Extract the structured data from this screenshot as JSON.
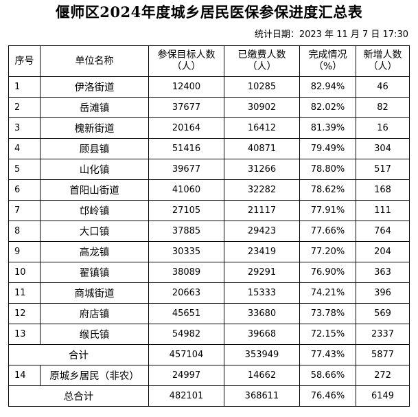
{
  "title": "偃师区2024年度城乡居民医保参保进度汇总表",
  "stat_time": "统计日期：2023 年 11 月 7 日 17:30",
  "headers": {
    "index": "序号",
    "unit_name": "单位名称",
    "target_main": "参保目标人数",
    "target_unit": "（人）",
    "paid_main": "已缴费人数",
    "paid_unit": "（人）",
    "rate_main": "完成情况",
    "rate_unit": "（%）",
    "new_main": "新增人数",
    "new_unit": "（人）"
  },
  "rows": [
    {
      "idx": "1",
      "name": "伊洛街道",
      "target": "12400",
      "paid": "10285",
      "rate": "82.94%",
      "new": "46"
    },
    {
      "idx": "2",
      "name": "岳滩镇",
      "target": "37677",
      "paid": "30902",
      "rate": "82.02%",
      "new": "82"
    },
    {
      "idx": "3",
      "name": "槐新街道",
      "target": "20164",
      "paid": "16412",
      "rate": "81.39%",
      "new": "16"
    },
    {
      "idx": "4",
      "name": "顾县镇",
      "target": "51416",
      "paid": "40871",
      "rate": "79.49%",
      "new": "304"
    },
    {
      "idx": "5",
      "name": "山化镇",
      "target": "39677",
      "paid": "31266",
      "rate": "78.80%",
      "new": "517"
    },
    {
      "idx": "6",
      "name": "首阳山街道",
      "target": "41060",
      "paid": "32282",
      "rate": "78.62%",
      "new": "168"
    },
    {
      "idx": "7",
      "name": "邙岭镇",
      "target": "27105",
      "paid": "21117",
      "rate": "77.91%",
      "new": "111"
    },
    {
      "idx": "8",
      "name": "大口镇",
      "target": "37885",
      "paid": "29423",
      "rate": "77.66%",
      "new": "764"
    },
    {
      "idx": "9",
      "name": "高龙镇",
      "target": "30335",
      "paid": "23419",
      "rate": "77.20%",
      "new": "204"
    },
    {
      "idx": "10",
      "name": "翟镇镇",
      "target": "38089",
      "paid": "29291",
      "rate": "76.90%",
      "new": "363"
    },
    {
      "idx": "11",
      "name": "商城街道",
      "target": "20663",
      "paid": "15333",
      "rate": "74.21%",
      "new": "396"
    },
    {
      "idx": "12",
      "name": "府店镇",
      "target": "45651",
      "paid": "33680",
      "rate": "73.78%",
      "new": "569"
    },
    {
      "idx": "13",
      "name": "缑氏镇",
      "target": "54982",
      "paid": "39668",
      "rate": "72.15%",
      "new": "2337"
    }
  ],
  "subtotal": {
    "label": "合计",
    "target": "457104",
    "paid": "353949",
    "rate": "77.43%",
    "new": "5877"
  },
  "extra_row": {
    "idx": "14",
    "name": "原城乡居民（非农）",
    "target": "24997",
    "paid": "14662",
    "rate": "58.66%",
    "new": "272"
  },
  "grand_total": {
    "label": "总合计",
    "target": "482101",
    "paid": "368611",
    "rate": "76.46%",
    "new": "6149"
  }
}
